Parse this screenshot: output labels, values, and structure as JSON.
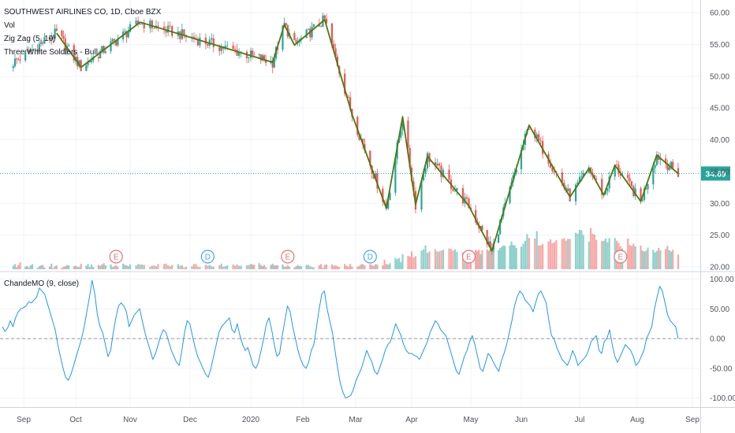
{
  "header": {
    "symbol_title": "SOUTHWEST AIRLINES CO, 1D, Cboe BZX",
    "indicators": [
      "Vol",
      "Zig Zag (5, 10)",
      "Three White Soldiers - Bull"
    ]
  },
  "last_price_label": "34.69",
  "colors": {
    "up": "#26a69a",
    "down": "#ef5350",
    "zigzag": "#4a7a0e",
    "oscillator": "#2196f3",
    "last_price": "#26a69a",
    "earnings_event": "#e57373",
    "dividend_event": "#42a5f5"
  },
  "chart_data": [
    {
      "type": "candlestick",
      "title": "SOUTHWEST AIRLINES CO, 1D, Cboe BZX",
      "x_ticks": [
        "Sep",
        "Oct",
        "Nov",
        "Dec",
        "2020",
        "Feb",
        "Mar",
        "Apr",
        "May",
        "Jun",
        "Jul",
        "Aug",
        "Sep"
      ],
      "y_ticks": [
        "60.00",
        "55.00",
        "50.00",
        "45.00",
        "40.00",
        "35.00",
        "30.00",
        "25.00",
        "20.00"
      ],
      "ylim": [
        19.5,
        62
      ],
      "last_price": 34.69,
      "zigzag": {
        "name": "Zig Zag (5, 10)",
        "points": [
          {
            "date": "2019-09-20",
            "price": 56.8
          },
          {
            "date": "2019-10-04",
            "price": 51.4
          },
          {
            "date": "2019-11-06",
            "price": 58.5
          },
          {
            "date": "2020-01-14",
            "price": 52.2
          },
          {
            "date": "2020-01-21",
            "price": 58.1
          },
          {
            "date": "2020-01-27",
            "price": 54.9
          },
          {
            "date": "2020-02-13",
            "price": 58.9
          },
          {
            "date": "2020-02-28",
            "price": 44.0
          },
          {
            "date": "2020-03-18",
            "price": 29.2
          },
          {
            "date": "2020-03-27",
            "price": 43.6
          },
          {
            "date": "2020-04-03",
            "price": 29.8
          },
          {
            "date": "2020-04-09",
            "price": 37.4
          },
          {
            "date": "2020-04-30",
            "price": 29.6
          },
          {
            "date": "2020-05-14",
            "price": 22.5
          },
          {
            "date": "2020-06-05",
            "price": 42.3
          },
          {
            "date": "2020-06-26",
            "price": 31.0
          },
          {
            "date": "2020-07-06",
            "price": 35.5
          },
          {
            "date": "2020-07-14",
            "price": 31.3
          },
          {
            "date": "2020-07-20",
            "price": 36.0
          },
          {
            "date": "2020-08-03",
            "price": 30.3
          },
          {
            "date": "2020-08-12",
            "price": 37.6
          },
          {
            "date": "2020-08-24",
            "price": 34.69
          }
        ]
      },
      "volume": {
        "name": "Vol",
        "note": "relative daily volume (0-1 of panel max)",
        "levels": [
          0.08,
          0.12,
          0.05,
          0.1,
          0.16,
          0.06,
          0.08,
          0.04,
          0.09,
          0.12,
          0.03,
          0.07,
          0.09,
          0.1,
          0.04,
          0.06,
          0.13,
          0.02,
          0.07,
          0.09,
          0.03,
          0.06,
          0.07,
          0.1,
          0.09,
          0.07,
          0.08,
          0.06,
          0.05,
          0.13,
          0.08,
          0.12,
          0.05,
          0.11,
          0.05,
          0.1,
          0.08,
          0.11,
          0.14,
          0.09,
          0.11,
          0.05,
          0.07,
          0.09,
          0.06,
          0.13,
          0.1,
          0.09,
          0.07,
          0.11,
          0.09,
          0.12,
          0.11,
          0.11,
          0.1,
          0.06,
          0.08,
          0.09,
          0.07,
          0.12,
          0.12,
          0.13,
          0.09,
          0.07,
          0.1,
          0.12,
          0.08,
          0.09,
          0.04,
          0.06,
          0.07,
          0.12,
          0.12,
          0.06,
          0.05,
          0.1,
          0.08,
          0.1,
          0.07,
          0.06,
          0.09,
          0.13,
          0.06,
          0.07,
          0.09,
          0.11,
          0.08,
          0.11,
          0.08,
          0.08,
          0.09,
          0.1,
          0.12,
          0.11,
          0.1,
          0.14,
          0.1,
          0.07,
          0.1,
          0.05,
          0.1,
          0.13,
          0.09,
          0.09,
          0.09,
          0.11,
          0.06,
          0.06,
          0.09,
          0.06,
          0.04,
          0.07,
          0.1,
          0.07,
          0.07,
          0.1,
          0.1,
          0.07,
          0.05,
          0.04,
          0.09,
          0.12,
          0.03,
          0.1,
          0.11,
          0.11,
          0.08,
          0.09,
          0.07,
          0.05,
          0.12,
          0.08,
          0.06,
          0.12,
          0.06,
          0.06,
          0.08,
          0.11,
          0.12,
          0.09,
          0.12,
          0.1,
          0.08,
          0.12,
          0.11,
          0.09,
          0.22,
          0.12,
          0.11,
          0.14,
          0.26,
          0.23,
          0.26,
          0.17,
          0.35,
          0.31,
          0.29,
          0.41,
          0.27,
          0.3,
          0.43,
          0.46,
          0.55,
          0.38,
          0.41,
          0.46,
          0.41,
          0.41,
          0.43,
          0.45,
          0.48,
          0.47,
          0.43,
          0.46,
          0.4,
          0.39,
          0.4,
          0.42,
          0.41,
          0.42,
          0.45,
          0.42,
          0.45,
          0.35,
          0.44,
          0.46,
          0.43,
          0.47,
          0.41,
          0.48,
          0.44,
          0.49,
          0.52,
          0.55,
          0.54,
          0.55,
          0.64,
          0.56,
          0.55,
          0.49,
          0.52,
          0.59,
          0.66,
          0.81,
          0.72,
          0.71,
          0.88,
          0.55,
          0.55,
          0.58,
          0.64,
          0.69,
          0.6,
          0.62,
          0.67,
          0.7,
          0.72,
          0.66,
          0.7,
          0.7,
          0.84,
          0.82,
          0.91,
          0.9,
          0.79,
          0.64,
          0.95,
          0.82,
          0.8,
          0.68,
          0.65,
          0.66,
          0.71,
          0.62,
          0.72,
          0.72,
          0.66,
          0.61,
          0.53,
          0.48,
          0.71,
          0.56,
          0.54,
          0.59,
          0.53,
          0.55,
          0.43,
          0.41,
          0.43,
          0.5,
          0.45,
          0.39,
          0.42,
          0.49,
          0.44,
          0.47,
          0.54,
          0.44,
          0.41,
          0.45,
          0.34,
          0.33,
          0.39,
          0.43,
          0.39,
          0.42,
          0.46,
          0.45,
          0.38,
          0.34,
          0.42,
          0.38,
          0.36,
          0.33,
          0.35,
          0.36,
          0.3,
          0.34,
          0.33,
          0.32
        ]
      },
      "events": [
        {
          "type": "earnings",
          "label": "E",
          "date": "2019-10-24"
        },
        {
          "type": "dividend",
          "label": "D",
          "date": "2019-12-10"
        },
        {
          "type": "earnings",
          "label": "E",
          "date": "2020-01-23"
        },
        {
          "type": "dividend",
          "label": "D",
          "date": "2020-03-09"
        },
        {
          "type": "earnings",
          "label": "E",
          "date": "2020-04-30"
        },
        {
          "type": "earnings",
          "label": "E",
          "date": "2020-07-23"
        }
      ]
    },
    {
      "type": "line",
      "title": "ChandeMO (9, close)",
      "y_ticks": [
        "100.00",
        "50.00",
        "0.00",
        "-50.00",
        "-100.00"
      ],
      "ylim": [
        -115,
        110
      ],
      "zero_line": 0,
      "series": [
        {
          "name": "ChandeMO (9, close)",
          "values": [
            20,
            12,
            18,
            30,
            20,
            35,
            45,
            50,
            52,
            55,
            62,
            60,
            65,
            70,
            85,
            80,
            75,
            60,
            45,
            30,
            15,
            -10,
            -30,
            -50,
            -65,
            -70,
            -60,
            -45,
            -30,
            -15,
            0,
            20,
            45,
            70,
            98,
            75,
            40,
            20,
            10,
            -10,
            -30,
            -20,
            10,
            35,
            55,
            60,
            55,
            45,
            20,
            30,
            40,
            45,
            50,
            30,
            10,
            -5,
            -20,
            -35,
            -25,
            -10,
            5,
            15,
            10,
            -5,
            -20,
            -30,
            -40,
            -45,
            -20,
            10,
            30,
            25,
            5,
            -15,
            -30,
            -40,
            -50,
            -60,
            -65,
            -50,
            -30,
            -10,
            10,
            20,
            25,
            30,
            35,
            15,
            10,
            25,
            5,
            -10,
            -20,
            -15,
            -30,
            -45,
            -50,
            -40,
            -20,
            0,
            25,
            35,
            15,
            -10,
            -30,
            -25,
            5,
            30,
            55,
            45,
            20,
            0,
            -20,
            -35,
            -45,
            -50,
            -40,
            -20,
            -10,
            20,
            50,
            75,
            80,
            50,
            30,
            10,
            -20,
            -50,
            -75,
            -90,
            -100,
            -98,
            -95,
            -85,
            -70,
            -60,
            -50,
            -35,
            -20,
            -30,
            -40,
            -55,
            -60,
            -48,
            -35,
            -20,
            -10,
            -5,
            10,
            25,
            15,
            5,
            -10,
            -20,
            -25,
            -25,
            -28,
            -30,
            -35,
            -25,
            -15,
            -5,
            10,
            20,
            30,
            25,
            15,
            10,
            5,
            -10,
            -25,
            -40,
            -55,
            -60,
            -45,
            -30,
            -20,
            -5,
            5,
            -10,
            -30,
            -50,
            -55,
            -40,
            -25,
            -30,
            -40,
            -48,
            -55,
            -38,
            -25,
            -10,
            10,
            30,
            55,
            70,
            80,
            75,
            65,
            60,
            55,
            45,
            60,
            75,
            80,
            70,
            60,
            30,
            5,
            0,
            -15,
            -25,
            -35,
            -40,
            -45,
            -35,
            -20,
            -30,
            -45,
            -40,
            -35,
            -30,
            -20,
            -5,
            0,
            5,
            -20,
            -25,
            -5,
            0,
            15,
            -10,
            -30,
            -40,
            -30,
            -20,
            -10,
            -15,
            -20,
            -30,
            -45,
            -40,
            -30,
            -20,
            0,
            10,
            20,
            50,
            70,
            88,
            80,
            60,
            40,
            30,
            25,
            20,
            0
          ]
        }
      ]
    }
  ]
}
